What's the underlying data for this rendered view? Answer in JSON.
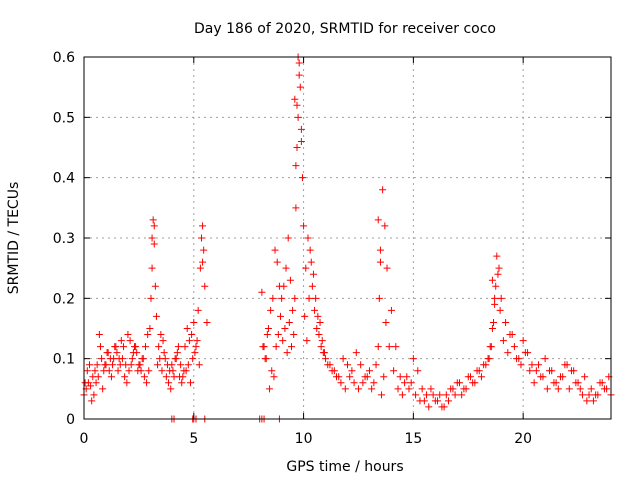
{
  "chart_data": {
    "type": "scatter",
    "title": "Day 186 of 2020, SRMTID for receiver coco",
    "xlabel": "GPS time / hours",
    "ylabel": "SRMTID / TECUs",
    "xlim": [
      0,
      24
    ],
    "ylim": [
      0,
      0.6
    ],
    "xticks": [
      0,
      5,
      10,
      15,
      20
    ],
    "yticks": [
      0,
      0.1,
      0.2,
      0.3,
      0.4,
      0.5,
      0.6
    ],
    "xtick_labels": [
      "0",
      "5",
      "10",
      "15",
      "20"
    ],
    "ytick_labels": [
      "0",
      "0.1",
      "0.2",
      "0.3",
      "0.4",
      "0.5",
      "0.6"
    ],
    "grid": true,
    "marker": "+",
    "series": [
      {
        "name": "SRMTID",
        "color": "#ff0000",
        "x": [
          0.0,
          0.1,
          0.2,
          0.3,
          0.4,
          0.5,
          0.6,
          0.7,
          0.75,
          0.8,
          0.9,
          1.0,
          1.1,
          1.2,
          1.3,
          1.4,
          1.5,
          1.6,
          1.7,
          1.8,
          1.9,
          2.0,
          2.1,
          2.2,
          2.3,
          2.4,
          2.5,
          2.6,
          2.7,
          2.8,
          2.9,
          3.0,
          3.05,
          3.1,
          3.15,
          3.2,
          3.25,
          3.3,
          3.4,
          3.5,
          3.6,
          3.7,
          3.8,
          3.9,
          4.0,
          4.1,
          4.2,
          4.3,
          4.4,
          4.5,
          4.6,
          4.7,
          4.8,
          4.9,
          5.0,
          5.1,
          5.2,
          5.3,
          5.35,
          5.4,
          5.45,
          5.5,
          5.6,
          8.1,
          8.2,
          8.3,
          8.4,
          8.5,
          8.6,
          8.7,
          8.8,
          8.9,
          9.0,
          9.1,
          9.2,
          9.3,
          9.4,
          9.5,
          9.6,
          9.65,
          9.7,
          9.75,
          9.8,
          9.85,
          9.9,
          9.95,
          10.0,
          10.1,
          10.2,
          10.3,
          10.4,
          10.5,
          10.6,
          10.7,
          10.8,
          10.9,
          11.0,
          11.2,
          11.4,
          11.6,
          11.8,
          12.0,
          12.2,
          12.4,
          12.6,
          12.8,
          13.0,
          13.2,
          13.3,
          13.4,
          13.45,
          13.5,
          13.6,
          13.7,
          13.8,
          14.0,
          14.2,
          14.4,
          14.6,
          14.8,
          15.0,
          15.2,
          15.4,
          15.6,
          15.8,
          16.0,
          16.2,
          16.4,
          16.6,
          16.8,
          17.0,
          17.2,
          17.4,
          17.6,
          17.8,
          18.0,
          18.2,
          18.4,
          18.5,
          18.6,
          18.7,
          18.8,
          18.9,
          19.0,
          19.2,
          19.4,
          19.6,
          19.8,
          20.0,
          20.2,
          20.4,
          20.6,
          20.8,
          21.0,
          21.2,
          21.4,
          21.6,
          21.8,
          22.0,
          22.2,
          22.4,
          22.6,
          22.8,
          23.0,
          23.2,
          23.4,
          23.6,
          23.8,
          24.0,
          0.05,
          0.15,
          0.25,
          0.35,
          0.45,
          0.55,
          0.65,
          0.85,
          0.95,
          1.05,
          1.15,
          1.25,
          1.35,
          1.45,
          1.55,
          1.65,
          1.75,
          1.85,
          1.95,
          2.05,
          2.15,
          2.25,
          2.35,
          2.45,
          2.55,
          2.65,
          2.75,
          2.85,
          2.95,
          3.35,
          3.45,
          3.55,
          3.65,
          3.75,
          3.85,
          3.95,
          4.05,
          4.15,
          4.25,
          4.35,
          4.45,
          4.55,
          4.65,
          4.75,
          4.85,
          4.95,
          5.05,
          5.15,
          5.25,
          8.15,
          8.25,
          8.35,
          8.45,
          8.55,
          8.65,
          8.75,
          8.85,
          8.95,
          9.05,
          9.15,
          9.25,
          9.35,
          9.45,
          9.55,
          10.05,
          10.15,
          10.25,
          10.35,
          10.45,
          10.55,
          10.65,
          10.75,
          10.85,
          10.95,
          11.1,
          11.3,
          11.5,
          11.7,
          11.9,
          12.1,
          12.3,
          12.5,
          12.7,
          12.9,
          13.1,
          13.55,
          13.65,
          13.75,
          13.9,
          14.1,
          14.3,
          14.5,
          14.7,
          14.9,
          15.1,
          15.3,
          15.5,
          15.7,
          15.9,
          16.1,
          16.3,
          16.5,
          16.7,
          16.9,
          17.1,
          17.3,
          17.5,
          17.7,
          17.9,
          18.1,
          18.3,
          18.45,
          18.55,
          18.65,
          18.75,
          18.85,
          18.95,
          19.1,
          19.3,
          19.5,
          19.7,
          19.9,
          20.1,
          20.3,
          20.5,
          20.7,
          20.9,
          21.1,
          21.3,
          21.5,
          21.7,
          21.9,
          22.1,
          22.3,
          22.5,
          22.7,
          22.9,
          23.1,
          23.3,
          23.5,
          23.7,
          23.9,
          3.1,
          3.2,
          5.4,
          9.6,
          9.7,
          9.8,
          9.9,
          9.75,
          9.65,
          13.4,
          13.5,
          18.6,
          18.7,
          4.0,
          4.1,
          4.95,
          5.0,
          5.1,
          5.5,
          8.0,
          8.1,
          8.2,
          8.9
        ],
        "y": [
          0.04,
          0.05,
          0.06,
          0.055,
          0.07,
          0.08,
          0.09,
          0.14,
          0.12,
          0.1,
          0.08,
          0.09,
          0.11,
          0.1,
          0.09,
          0.12,
          0.11,
          0.1,
          0.13,
          0.12,
          0.09,
          0.14,
          0.13,
          0.1,
          0.12,
          0.11,
          0.09,
          0.08,
          0.1,
          0.12,
          0.14,
          0.15,
          0.2,
          0.25,
          0.33,
          0.32,
          0.22,
          0.17,
          0.12,
          0.14,
          0.13,
          0.1,
          0.09,
          0.08,
          0.09,
          0.07,
          0.1,
          0.12,
          0.09,
          0.07,
          0.12,
          0.15,
          0.13,
          0.14,
          0.16,
          0.12,
          0.18,
          0.25,
          0.3,
          0.32,
          0.28,
          0.22,
          0.16,
          0.21,
          0.12,
          0.1,
          0.15,
          0.18,
          0.2,
          0.28,
          0.26,
          0.22,
          0.2,
          0.22,
          0.25,
          0.3,
          0.23,
          0.18,
          0.2,
          0.35,
          0.45,
          0.5,
          0.59,
          0.55,
          0.48,
          0.4,
          0.32,
          0.25,
          0.3,
          0.28,
          0.22,
          0.18,
          0.15,
          0.14,
          0.12,
          0.11,
          0.1,
          0.09,
          0.08,
          0.07,
          0.1,
          0.09,
          0.08,
          0.11,
          0.09,
          0.07,
          0.08,
          0.06,
          0.09,
          0.12,
          0.2,
          0.28,
          0.38,
          0.32,
          0.25,
          0.18,
          0.12,
          0.07,
          0.06,
          0.05,
          0.1,
          0.08,
          0.05,
          0.04,
          0.05,
          0.03,
          0.04,
          0.02,
          0.03,
          0.05,
          0.06,
          0.04,
          0.05,
          0.07,
          0.06,
          0.08,
          0.09,
          0.1,
          0.12,
          0.15,
          0.2,
          0.27,
          0.25,
          0.2,
          0.16,
          0.14,
          0.12,
          0.1,
          0.13,
          0.11,
          0.09,
          0.08,
          0.07,
          0.1,
          0.08,
          0.06,
          0.05,
          0.07,
          0.09,
          0.08,
          0.06,
          0.05,
          0.07,
          0.04,
          0.03,
          0.04,
          0.06,
          0.05,
          0.04,
          0.06,
          0.08,
          0.09,
          0.03,
          0.04,
          0.06,
          0.07,
          0.05,
          0.09,
          0.11,
          0.08,
          0.07,
          0.1,
          0.12,
          0.08,
          0.09,
          0.1,
          0.07,
          0.06,
          0.08,
          0.09,
          0.11,
          0.12,
          0.08,
          0.09,
          0.1,
          0.07,
          0.06,
          0.08,
          0.09,
          0.1,
          0.08,
          0.11,
          0.07,
          0.06,
          0.05,
          0.08,
          0.1,
          0.11,
          0.07,
          0.06,
          0.08,
          0.08,
          0.09,
          0.06,
          0.1,
          0.11,
          0.13,
          0.09,
          0.12,
          0.1,
          0.14,
          0.05,
          0.08,
          0.07,
          0.12,
          0.14,
          0.17,
          0.13,
          0.15,
          0.11,
          0.16,
          0.12,
          0.14,
          0.17,
          0.13,
          0.2,
          0.26,
          0.24,
          0.2,
          0.17,
          0.16,
          0.13,
          0.11,
          0.09,
          0.08,
          0.07,
          0.06,
          0.05,
          0.07,
          0.06,
          0.05,
          0.06,
          0.07,
          0.05,
          0.04,
          0.07,
          0.16,
          0.12,
          0.08,
          0.05,
          0.04,
          0.07,
          0.06,
          0.04,
          0.03,
          0.03,
          0.02,
          0.04,
          0.03,
          0.02,
          0.04,
          0.05,
          0.04,
          0.06,
          0.05,
          0.07,
          0.06,
          0.08,
          0.07,
          0.09,
          0.1,
          0.12,
          0.16,
          0.22,
          0.24,
          0.18,
          0.13,
          0.11,
          0.14,
          0.1,
          0.09,
          0.11,
          0.08,
          0.06,
          0.09,
          0.07,
          0.05,
          0.08,
          0.06,
          0.07,
          0.09,
          0.05,
          0.08,
          0.06,
          0.04,
          0.03,
          0.05,
          0.04,
          0.06,
          0.05,
          0.07,
          0.3,
          0.29,
          0.26,
          0.53,
          0.52,
          0.57,
          0.46,
          0.6,
          0.42,
          0.33,
          0.26,
          0.23,
          0.19,
          0.0,
          0.0,
          0.0,
          0.0,
          0.0,
          0.0,
          0.0,
          0.0,
          0.0,
          0.0
        ]
      }
    ]
  }
}
